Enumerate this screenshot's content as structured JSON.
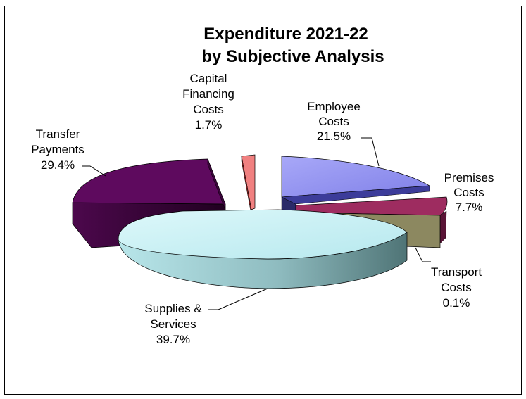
{
  "chart_data": {
    "type": "pie",
    "title": "Expenditure 2021-22",
    "subtitle": "by Subjective Analysis",
    "slices": [
      {
        "label_lines": [
          "Employee",
          "Costs"
        ],
        "pct_label": "21.5%",
        "value": 21.5,
        "color": "#9a9af2"
      },
      {
        "label_lines": [
          "Premises",
          "Costs"
        ],
        "pct_label": "7.7%",
        "value": 7.7,
        "color": "#9e2c60"
      },
      {
        "label_lines": [
          "Transport",
          "Costs"
        ],
        "pct_label": "0.1%",
        "value": 0.1,
        "color": "#8c8860"
      },
      {
        "label_lines": [
          "Supplies &",
          "Services"
        ],
        "pct_label": "39.7%",
        "value": 39.7,
        "color": "#c8f0f4"
      },
      {
        "label_lines": [
          "Transfer",
          "Payments"
        ],
        "pct_label": "29.4%",
        "value": 29.4,
        "color": "#5e0a5e"
      },
      {
        "label_lines": [
          "Capital",
          "Financing",
          "Costs"
        ],
        "pct_label": "1.7%",
        "value": 1.7,
        "color": "#f08080"
      }
    ]
  }
}
